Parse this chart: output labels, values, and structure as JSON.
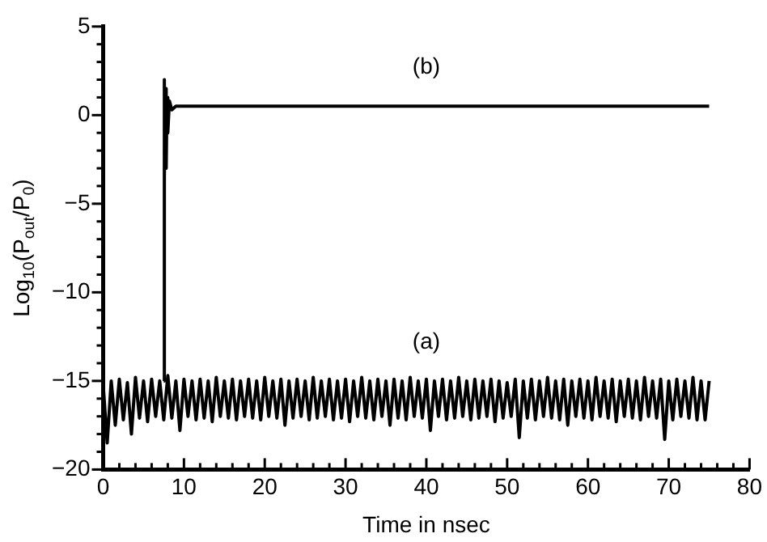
{
  "chart_data": {
    "type": "line",
    "xlabel": "Time in nsec",
    "ylabel": "Log$_{10}$(P$_{out}$/P$_{0}$)",
    "xlim": [
      0,
      80
    ],
    "xticks": [
      0,
      10,
      20,
      30,
      40,
      50,
      60,
      70,
      80
    ],
    "ylim": [
      -20,
      5
    ],
    "yticks": [
      -20,
      -15,
      -10,
      -5,
      0,
      5
    ],
    "grid": false,
    "legend": false,
    "marker": "none",
    "line_style": "solid",
    "annotations": [
      "(b)",
      "(a)"
    ],
    "series": [
      {
        "color": "#000000",
        "x": [
          0,
          0.5,
          1,
          1.5,
          2,
          2.5,
          3,
          3.5,
          4,
          4.5,
          5,
          5.5,
          6,
          6.5,
          7,
          7.5,
          8,
          8.5,
          9,
          9.5,
          10,
          10.5,
          11,
          11.5,
          12,
          12.5,
          13,
          13.5,
          14,
          14.5,
          15,
          15.5,
          16,
          16.5,
          17,
          17.5,
          18,
          18.5,
          19,
          19.5,
          20,
          20.5,
          21,
          21.5,
          22,
          22.5,
          23,
          23.5,
          24,
          24.5,
          25,
          25.5,
          26,
          26.5,
          27,
          27.5,
          28,
          28.5,
          29,
          29.5,
          30,
          30.5,
          31,
          31.5,
          32,
          32.5,
          33,
          33.5,
          34,
          34.5,
          35,
          35.5,
          36,
          36.5,
          37,
          37.5,
          38,
          38.5,
          39,
          39.5,
          40,
          40.5,
          41,
          41.5,
          42,
          42.5,
          43,
          43.5,
          44,
          44.5,
          45,
          45.5,
          46,
          46.5,
          47,
          47.5,
          48,
          48.5,
          49,
          49.5,
          50,
          50.5,
          51,
          51.5,
          52,
          52.5,
          53,
          53.5,
          54,
          54.5,
          55,
          55.5,
          56,
          56.5,
          57,
          57.5,
          58,
          58.5,
          59,
          59.5,
          60,
          60.5,
          61,
          61.5,
          62,
          62.5,
          63,
          63.5,
          64,
          64.5,
          65,
          65.5,
          66,
          66.5,
          67,
          67.5,
          68,
          68.5,
          69,
          69.5,
          70,
          70.5,
          71,
          71.5,
          72,
          72.5,
          73,
          73.5,
          74,
          74.5,
          75
        ],
        "values": [
          -15.2,
          -18.5,
          -15,
          -17.5,
          -14.9,
          -17.2,
          -15.1,
          -18,
          -14.8,
          -17.1,
          -15,
          -17.3,
          -14.9,
          -17,
          -15,
          -17.2,
          -14.7,
          -17.1,
          -15,
          -17.8,
          -14.9,
          -17,
          -15,
          -17.2,
          -14.9,
          -17.1,
          -15,
          -17.3,
          -14.8,
          -17,
          -15,
          -17.1,
          -14.9,
          -17.2,
          -15,
          -17,
          -14.9,
          -17.1,
          -15,
          -17.2,
          -14.8,
          -17,
          -15,
          -17.1,
          -14.9,
          -17.5,
          -15,
          -17.1,
          -14.9,
          -17,
          -15,
          -17.2,
          -14.8,
          -17.1,
          -15,
          -17,
          -14.9,
          -17.2,
          -15,
          -17.1,
          -14.9,
          -17.3,
          -15,
          -17,
          -14.8,
          -17.1,
          -15,
          -17.2,
          -14.9,
          -17,
          -15,
          -17.5,
          -14.9,
          -17.1,
          -15,
          -17.2,
          -14.8,
          -17,
          -15,
          -17.1,
          -14.9,
          -17.8,
          -15,
          -17,
          -14.9,
          -17.2,
          -15,
          -17.1,
          -14.8,
          -17,
          -15,
          -17.2,
          -14.9,
          -17.1,
          -15,
          -17,
          -14.9,
          -17.3,
          -15,
          -17.1,
          -15.1,
          -17,
          -14.9,
          -18.2,
          -15,
          -17.1,
          -14.9,
          -17.2,
          -15,
          -17,
          -14.8,
          -17.1,
          -15,
          -17.2,
          -14.9,
          -17.5,
          -15,
          -17,
          -14.9,
          -17.1,
          -15,
          -17.2,
          -14.8,
          -17,
          -15,
          -17.1,
          -14.9,
          -17.3,
          -15,
          -17,
          -14.9,
          -17.1,
          -15,
          -17.2,
          -14.8,
          -17,
          -15,
          -17.1,
          -14.9,
          -18.3,
          -15,
          -17.2,
          -14.9,
          -17,
          -15,
          -17.1,
          -14.8,
          -17.2,
          -15,
          -17.2,
          -15
        ]
      },
      {
        "color": "#000000",
        "x": [
          7.5,
          7.55,
          7.6,
          7.7,
          7.8,
          7.9,
          8,
          8.2,
          8.5,
          9,
          75
        ],
        "values": [
          -15,
          2,
          -3.5,
          1.5,
          -3,
          1,
          -1,
          0.8,
          0.3,
          0.5,
          0.5
        ]
      }
    ]
  }
}
